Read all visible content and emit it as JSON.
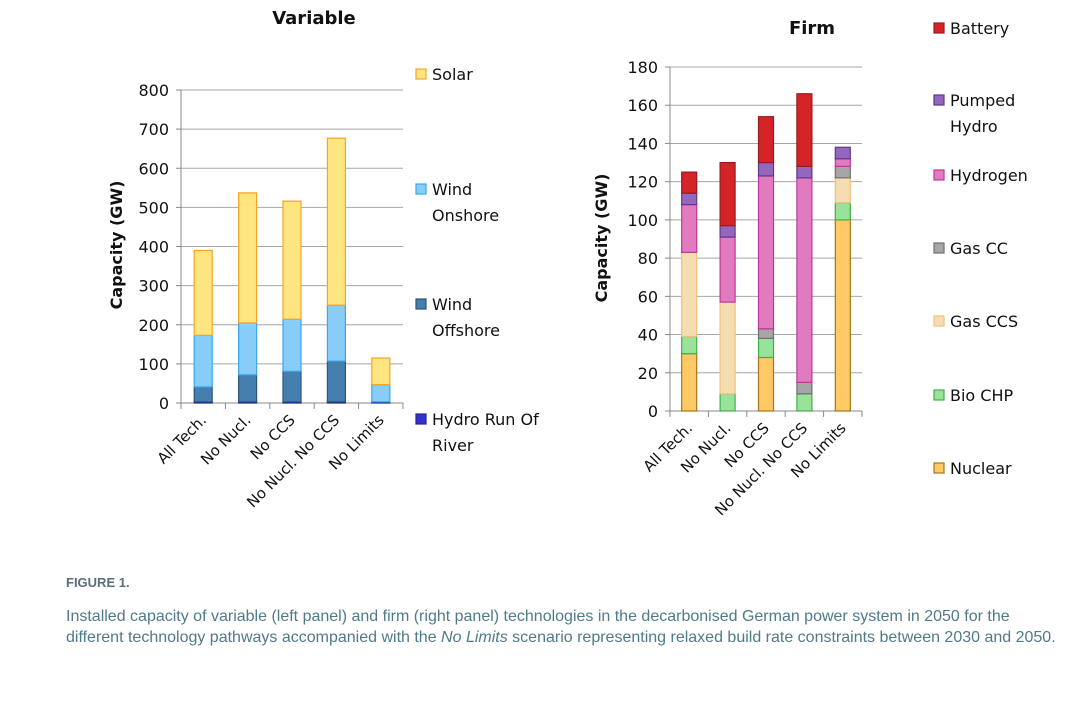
{
  "chart_data": [
    {
      "type": "bar",
      "stacked": true,
      "title": "Variable",
      "ylabel": "Capacity (GW)",
      "ylim": [
        0,
        800
      ],
      "yticks": [
        0,
        100,
        200,
        300,
        400,
        500,
        600,
        700,
        800
      ],
      "grid": true,
      "legend": "right",
      "categories": [
        "All Tech.",
        "No Nucl.",
        "No CCS",
        "No Nucl. No CCS",
        "No Limits"
      ],
      "series": [
        {
          "name": "Hydro Run Of River",
          "color": "#3333CC",
          "stroke": "#22229a",
          "values": [
            3,
            3,
            3,
            3,
            3
          ]
        },
        {
          "name": "Wind Offshore",
          "color": "#457FB0",
          "stroke": "#2C5777",
          "values": [
            38,
            69,
            78,
            104,
            0
          ]
        },
        {
          "name": "Wind Onshore",
          "color": "#88CCF8",
          "stroke": "#3AA7EE",
          "values": [
            132,
            133,
            133,
            143,
            44
          ]
        },
        {
          "name": "Solar",
          "color": "#FFE57F",
          "stroke": "#F5A623",
          "values": [
            217,
            332,
            302,
            427,
            68
          ]
        }
      ]
    },
    {
      "type": "bar",
      "stacked": true,
      "title": "Firm",
      "ylabel": "Capacity (GW)",
      "ylim": [
        0,
        180
      ],
      "yticks": [
        0,
        20,
        40,
        60,
        80,
        100,
        120,
        140,
        160,
        180
      ],
      "grid": true,
      "legend": "right",
      "categories": [
        "All Tech.",
        "No Nucl.",
        "No CCS",
        "No Nucl. No CCS",
        "No Limits"
      ],
      "series": [
        {
          "name": "Nuclear",
          "color": "#FFC966",
          "stroke": "#A8741A",
          "values": [
            30,
            0,
            28,
            0,
            100
          ]
        },
        {
          "name": "Bio CHP",
          "color": "#98E29A",
          "stroke": "#3FB04A",
          "values": [
            9,
            9,
            10,
            9,
            9
          ]
        },
        {
          "name": "Gas CCS",
          "color": "#F5DDB3",
          "stroke": "#F0C07A",
          "values": [
            44,
            48,
            0,
            0,
            13
          ]
        },
        {
          "name": "Gas CC",
          "color": "#A6A6A6",
          "stroke": "#707070",
          "values": [
            0,
            0,
            5,
            6,
            6
          ]
        },
        {
          "name": "Hydrogen",
          "color": "#E27AC0",
          "stroke": "#C0369A",
          "values": [
            25,
            34,
            80,
            107,
            4
          ]
        },
        {
          "name": "Pumped Hydro",
          "color": "#9466BE",
          "stroke": "#5E3A86",
          "values": [
            6,
            6,
            7,
            6,
            6
          ]
        },
        {
          "name": "Battery",
          "color": "#D42428",
          "stroke": "#9B1A1D",
          "values": [
            11,
            33,
            24,
            38,
            0
          ]
        }
      ]
    }
  ],
  "caption": {
    "label": "FIGURE 1.",
    "text_before": "Installed capacity of variable (left panel) and firm (right panel) technologies in the decarbonised German power system in 2050 for the different technology pathways accompanied with the ",
    "text_italic": "No Limits",
    "text_after": " scenario representing relaxed build rate constraints between 2030 and 2050."
  }
}
